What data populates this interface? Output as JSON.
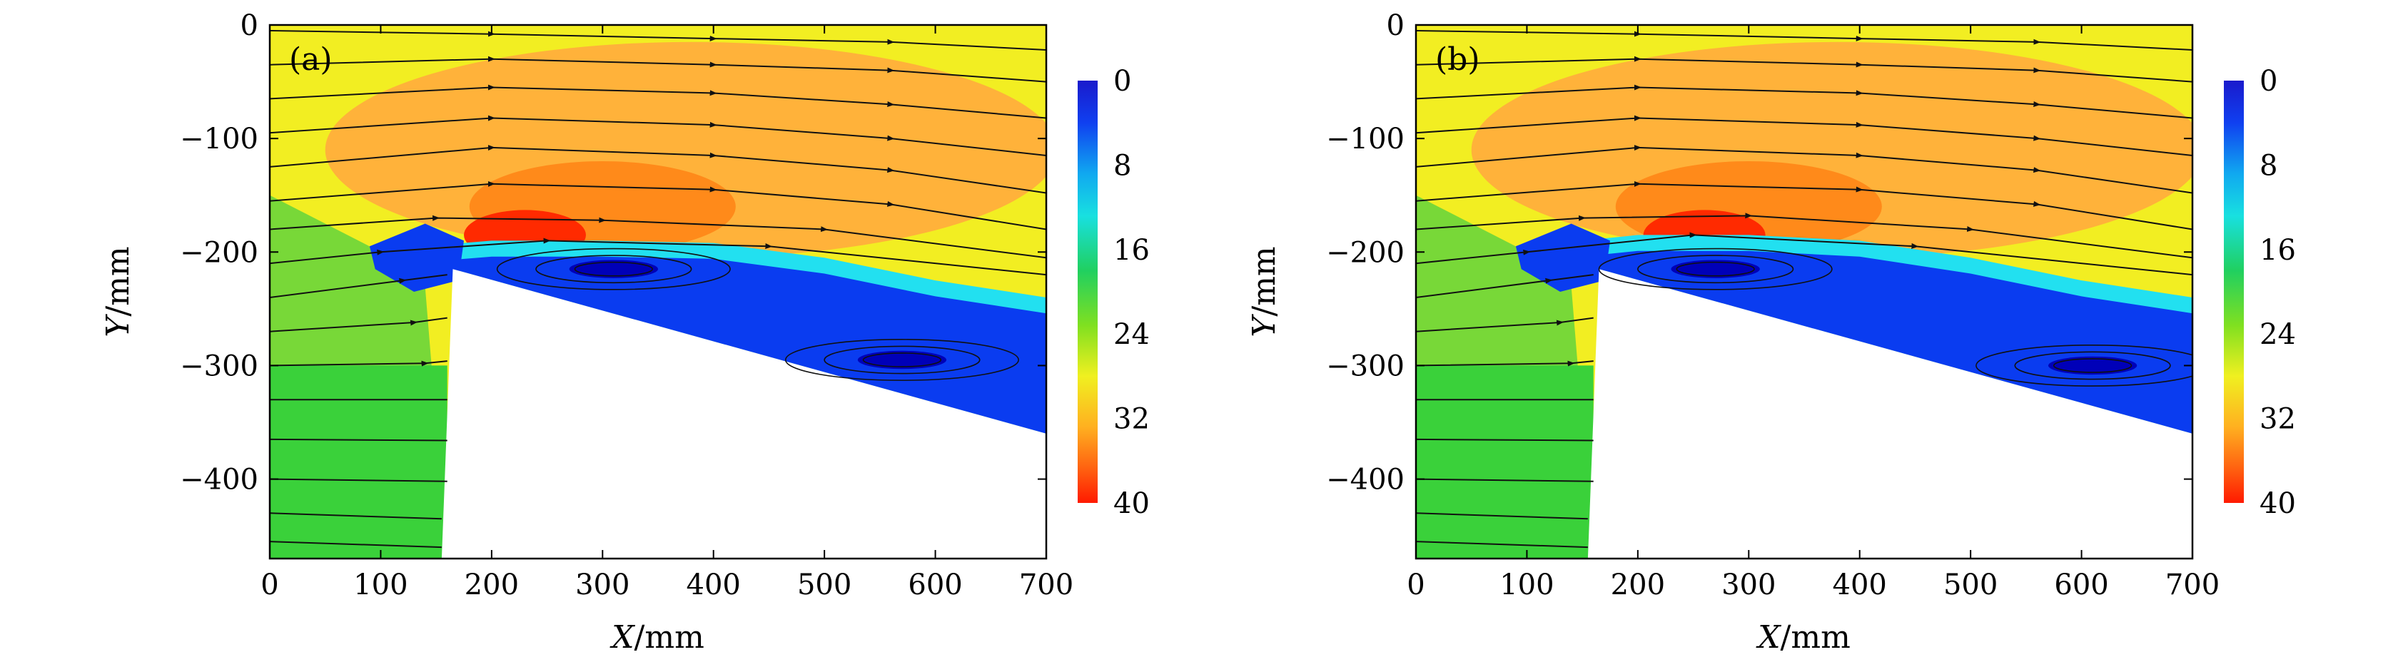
{
  "chart_data": [
    {
      "type": "heatmap",
      "panel_label": "(a)",
      "xlabel_var": "X",
      "xlabel_unit": "/mm",
      "ylabel_var": "Y",
      "ylabel_unit": "/mm",
      "xlim": [
        0,
        700
      ],
      "ylim": [
        -470,
        0
      ],
      "xticks": [
        0,
        100,
        200,
        300,
        400,
        500,
        600,
        700
      ],
      "yticks": [
        0,
        -100,
        -200,
        -300,
        -400
      ],
      "colorbar": {
        "ticks": [
          0,
          8,
          16,
          24,
          32,
          40
        ],
        "range": [
          0,
          40
        ],
        "direction": "0 at top, 40 at bottom"
      },
      "colors": {
        "high": "#ff2a00",
        "orange": "#ff8a1a",
        "yellow": "#f2ee22",
        "green": "#3ad13a",
        "cyan": "#22e0f0",
        "blue": "#0a3cf0",
        "dark_blue": "#0000b8"
      },
      "body_outline": [
        [
          165,
          -215
        ],
        [
          700,
          -360
        ],
        [
          700,
          -470
        ],
        [
          155,
          -470
        ]
      ],
      "shear_layer_top": [
        [
          100,
          -198
        ],
        [
          200,
          -190
        ],
        [
          300,
          -190
        ],
        [
          400,
          -192
        ],
        [
          500,
          -205
        ],
        [
          600,
          -225
        ],
        [
          700,
          -240
        ]
      ],
      "separation_bubble": {
        "x_range": [
          180,
          700
        ],
        "min_y": -200
      },
      "recirculation_cores": [
        [
          310,
          -215
        ],
        [
          570,
          -295
        ]
      ],
      "streamlines": [
        [
          [
            0,
            -5
          ],
          [
            200,
            -8
          ],
          [
            400,
            -12
          ],
          [
            560,
            -15
          ],
          [
            700,
            -22
          ]
        ],
        [
          [
            0,
            -35
          ],
          [
            200,
            -30
          ],
          [
            400,
            -35
          ],
          [
            560,
            -40
          ],
          [
            700,
            -50
          ]
        ],
        [
          [
            0,
            -65
          ],
          [
            200,
            -55
          ],
          [
            400,
            -60
          ],
          [
            560,
            -70
          ],
          [
            700,
            -82
          ]
        ],
        [
          [
            0,
            -95
          ],
          [
            200,
            -82
          ],
          [
            400,
            -88
          ],
          [
            560,
            -100
          ],
          [
            700,
            -115
          ]
        ],
        [
          [
            0,
            -125
          ],
          [
            200,
            -108
          ],
          [
            400,
            -115
          ],
          [
            560,
            -128
          ],
          [
            700,
            -148
          ]
        ],
        [
          [
            0,
            -155
          ],
          [
            200,
            -140
          ],
          [
            400,
            -145
          ],
          [
            560,
            -158
          ],
          [
            700,
            -180
          ]
        ],
        [
          [
            0,
            -180
          ],
          [
            150,
            -170
          ],
          [
            300,
            -172
          ],
          [
            500,
            -180
          ],
          [
            700,
            -205
          ]
        ],
        [
          [
            0,
            -210
          ],
          [
            100,
            -200
          ],
          [
            250,
            -190
          ],
          [
            450,
            -195
          ],
          [
            700,
            -220
          ]
        ],
        [
          [
            0,
            -240
          ],
          [
            120,
            -225
          ],
          [
            160,
            -220
          ]
        ],
        [
          [
            0,
            -270
          ],
          [
            130,
            -262
          ],
          [
            160,
            -258
          ]
        ],
        [
          [
            0,
            -300
          ],
          [
            140,
            -298
          ],
          [
            160,
            -296
          ]
        ],
        [
          [
            0,
            -330
          ],
          [
            160,
            -330
          ]
        ],
        [
          [
            0,
            -365
          ],
          [
            160,
            -366
          ]
        ],
        [
          [
            0,
            -400
          ],
          [
            160,
            -402
          ]
        ],
        [
          [
            0,
            -430
          ],
          [
            155,
            -435
          ]
        ],
        [
          [
            0,
            -455
          ],
          [
            155,
            -460
          ]
        ]
      ]
    },
    {
      "type": "heatmap",
      "panel_label": "(b)",
      "xlabel_var": "X",
      "xlabel_unit": "/mm",
      "ylabel_var": "Y",
      "ylabel_unit": "/mm",
      "xlim": [
        0,
        700
      ],
      "ylim": [
        -470,
        0
      ],
      "xticks": [
        0,
        100,
        200,
        300,
        400,
        500,
        600,
        700
      ],
      "yticks": [
        0,
        -100,
        -200,
        -300,
        -400
      ],
      "colorbar": {
        "ticks": [
          0,
          8,
          16,
          24,
          32,
          40
        ],
        "range": [
          0,
          40
        ],
        "direction": "0 at top, 40 at bottom"
      },
      "colors": {
        "high": "#ff2a00",
        "orange": "#ff8a1a",
        "yellow": "#f2ee22",
        "green": "#3ad13a",
        "cyan": "#22e0f0",
        "blue": "#0a3cf0",
        "dark_blue": "#0000b8"
      },
      "body_outline": [
        [
          165,
          -215
        ],
        [
          700,
          -360
        ],
        [
          700,
          -470
        ],
        [
          155,
          -470
        ]
      ],
      "shear_layer_top": [
        [
          100,
          -195
        ],
        [
          200,
          -185
        ],
        [
          300,
          -185
        ],
        [
          400,
          -190
        ],
        [
          500,
          -205
        ],
        [
          600,
          -225
        ],
        [
          700,
          -240
        ]
      ],
      "separation_bubble": {
        "x_range": [
          180,
          700
        ],
        "min_y": -195
      },
      "recirculation_cores": [
        [
          270,
          -215
        ],
        [
          610,
          -300
        ]
      ],
      "streamlines": [
        [
          [
            0,
            -5
          ],
          [
            200,
            -8
          ],
          [
            400,
            -12
          ],
          [
            560,
            -15
          ],
          [
            700,
            -22
          ]
        ],
        [
          [
            0,
            -35
          ],
          [
            200,
            -30
          ],
          [
            400,
            -35
          ],
          [
            560,
            -40
          ],
          [
            700,
            -50
          ]
        ],
        [
          [
            0,
            -65
          ],
          [
            200,
            -55
          ],
          [
            400,
            -60
          ],
          [
            560,
            -70
          ],
          [
            700,
            -82
          ]
        ],
        [
          [
            0,
            -95
          ],
          [
            200,
            -82
          ],
          [
            400,
            -88
          ],
          [
            560,
            -100
          ],
          [
            700,
            -115
          ]
        ],
        [
          [
            0,
            -125
          ],
          [
            200,
            -108
          ],
          [
            400,
            -115
          ],
          [
            560,
            -128
          ],
          [
            700,
            -148
          ]
        ],
        [
          [
            0,
            -155
          ],
          [
            200,
            -140
          ],
          [
            400,
            -145
          ],
          [
            560,
            -158
          ],
          [
            700,
            -180
          ]
        ],
        [
          [
            0,
            -180
          ],
          [
            150,
            -170
          ],
          [
            300,
            -168
          ],
          [
            500,
            -180
          ],
          [
            700,
            -205
          ]
        ],
        [
          [
            0,
            -210
          ],
          [
            100,
            -200
          ],
          [
            250,
            -185
          ],
          [
            450,
            -195
          ],
          [
            700,
            -220
          ]
        ],
        [
          [
            0,
            -240
          ],
          [
            120,
            -225
          ],
          [
            160,
            -220
          ]
        ],
        [
          [
            0,
            -270
          ],
          [
            130,
            -262
          ],
          [
            160,
            -258
          ]
        ],
        [
          [
            0,
            -300
          ],
          [
            140,
            -298
          ],
          [
            160,
            -296
          ]
        ],
        [
          [
            0,
            -330
          ],
          [
            160,
            -330
          ]
        ],
        [
          [
            0,
            -365
          ],
          [
            160,
            -366
          ]
        ],
        [
          [
            0,
            -400
          ],
          [
            160,
            -402
          ]
        ],
        [
          [
            0,
            -430
          ],
          [
            155,
            -435
          ]
        ],
        [
          [
            0,
            -455
          ],
          [
            155,
            -460
          ]
        ]
      ]
    }
  ]
}
